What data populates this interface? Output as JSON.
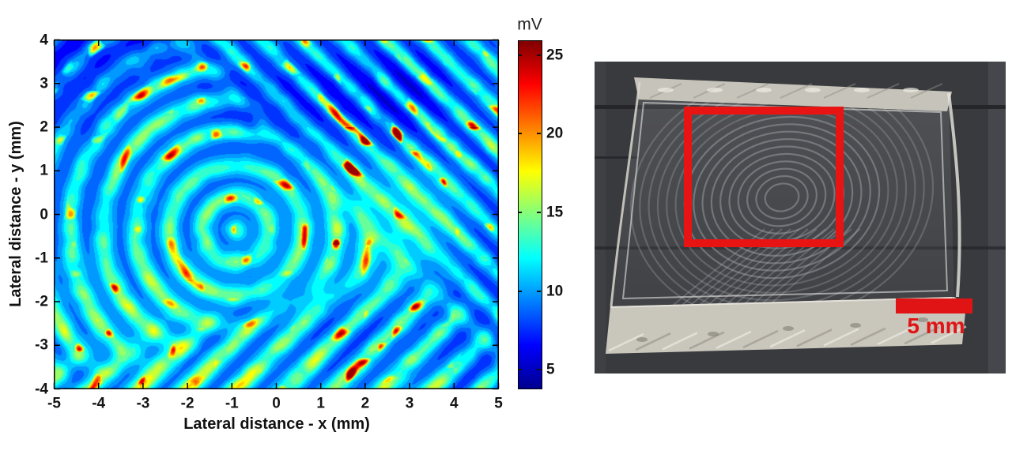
{
  "chart_data": {
    "type": "heatmap",
    "title": "",
    "xlabel": "Lateral distance - x (mm)",
    "ylabel": "Lateral distance - y (mm)",
    "xlim": [
      -5,
      5
    ],
    "ylim": [
      -4,
      4
    ],
    "x_ticks": [
      -5,
      -4,
      -3,
      -2,
      -1,
      0,
      1,
      2,
      3,
      4,
      5
    ],
    "y_ticks": [
      4,
      3,
      2,
      1,
      0,
      -1,
      -2,
      -3,
      -4
    ],
    "grid": false,
    "colormap": "jet",
    "colorbar": {
      "label": "mV",
      "ticks": [
        25,
        20,
        15,
        10,
        5
      ],
      "vmin": 3.85,
      "vmax": 25.95,
      "levels": 20
    },
    "content": "Acoustic/photoacoustic amplitude scan of a fingerprint: ridge arcs curve around a core near (-0.9,-0.35) mm, diagonal ridges run toward the upper right and lower left; background ~8-12 mV (blue/cyan), ridges ~15-19 mV (green/yellow), hot spots up to ~26 mV (red)",
    "pattern": {
      "core_mm": [
        -0.9,
        -0.35
      ],
      "arc_spacing_mm": 0.75,
      "diag_up_right_spacing_mm": 0.66,
      "diag_low_left_spacing_mm": 0.78,
      "background_mv": 10.9,
      "ridge_amplitude_mv": 4.2,
      "hotspot_peak_mv": 25.9
    }
  },
  "photo": {
    "scale_label": "5 mm",
    "roi_color": "#e81414",
    "scalebar_color": "#e01414",
    "content": "Transparent fingerprint-molded elastomer slab on a dark surface; red box marks the scanned region"
  }
}
